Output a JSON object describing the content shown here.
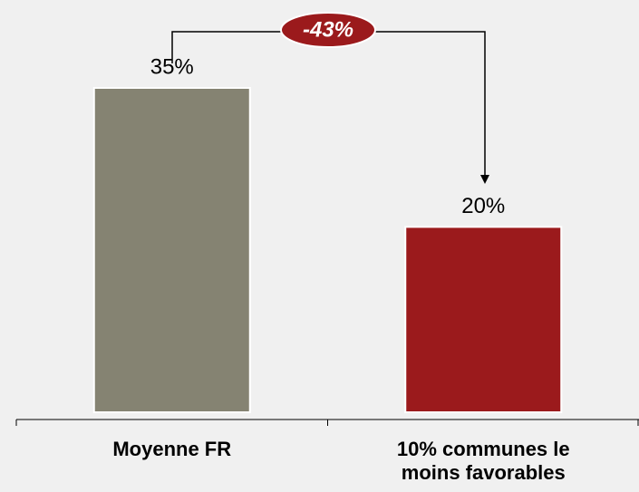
{
  "chart_data": {
    "type": "bar",
    "categories": [
      "Moyenne FR",
      "10% communes le moins favorables"
    ],
    "values": [
      35,
      20
    ],
    "value_labels": [
      "35%",
      "20%"
    ],
    "colors": [
      "#858372",
      "#9b1a1c"
    ],
    "annotation": "-43%"
  }
}
